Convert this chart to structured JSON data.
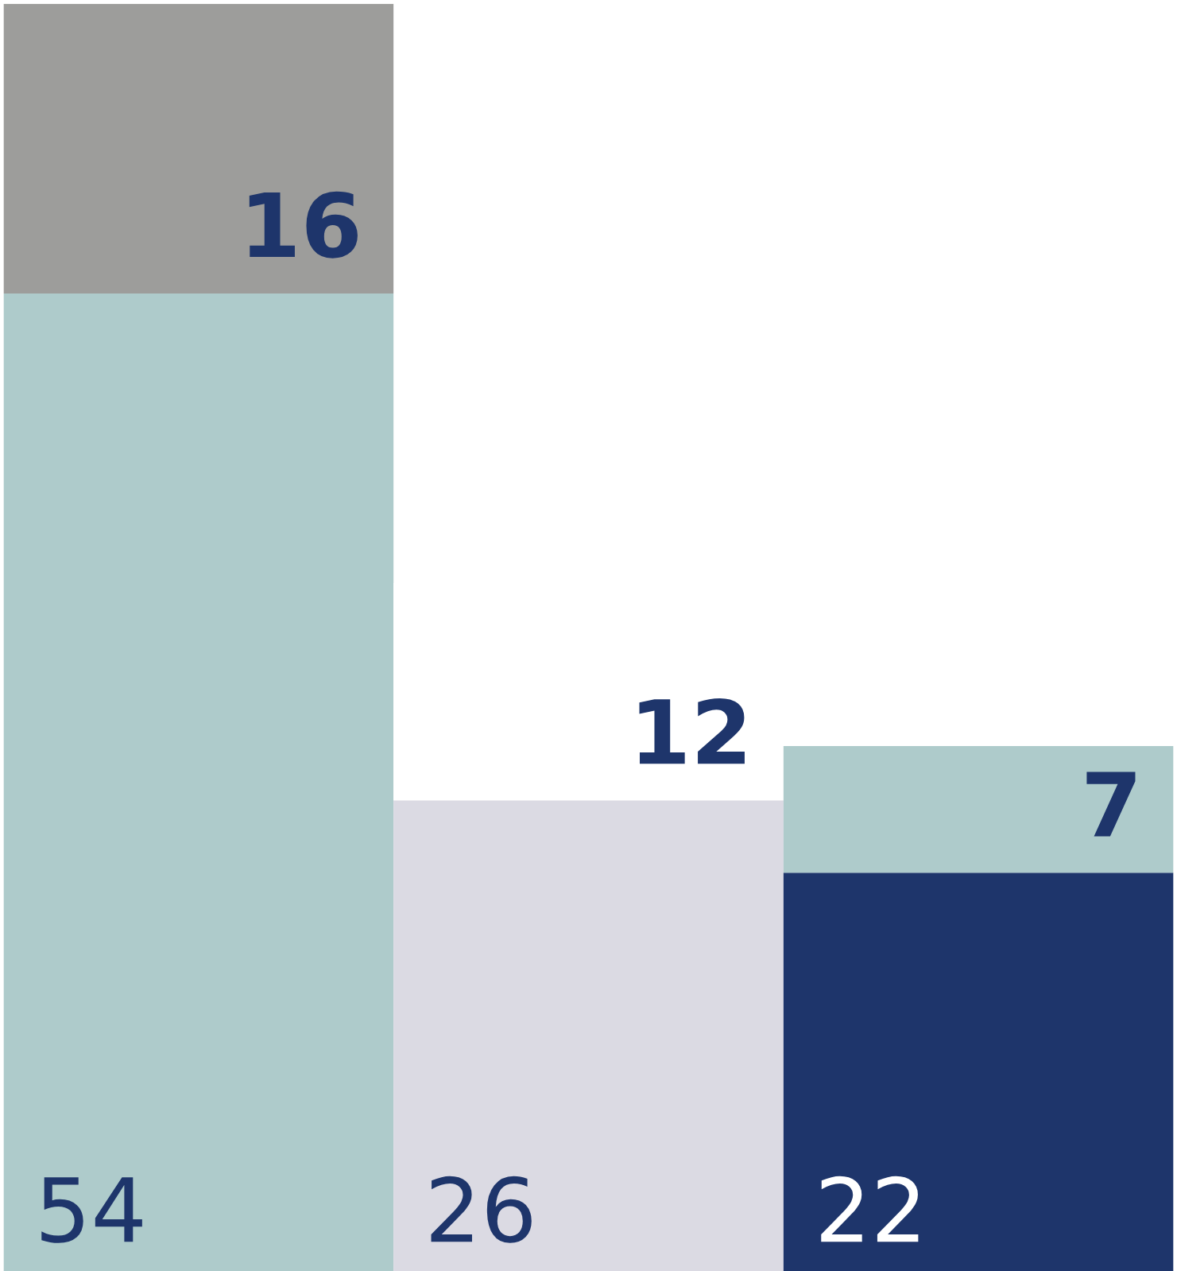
{
  "chart_data": {
    "type": "bar",
    "stacked": true,
    "data_labels": true,
    "categories": [
      null,
      null,
      null
    ],
    "series": [
      {
        "colors": [
          "#aecbcb",
          "#dbdae3",
          "#1e356b"
        ],
        "values": [
          54,
          26,
          22
        ]
      },
      {
        "colors": [
          "#9d9d9b",
          "#ffffff",
          "#aecbcb"
        ],
        "values": [
          16,
          12,
          7
        ]
      }
    ]
  }
}
